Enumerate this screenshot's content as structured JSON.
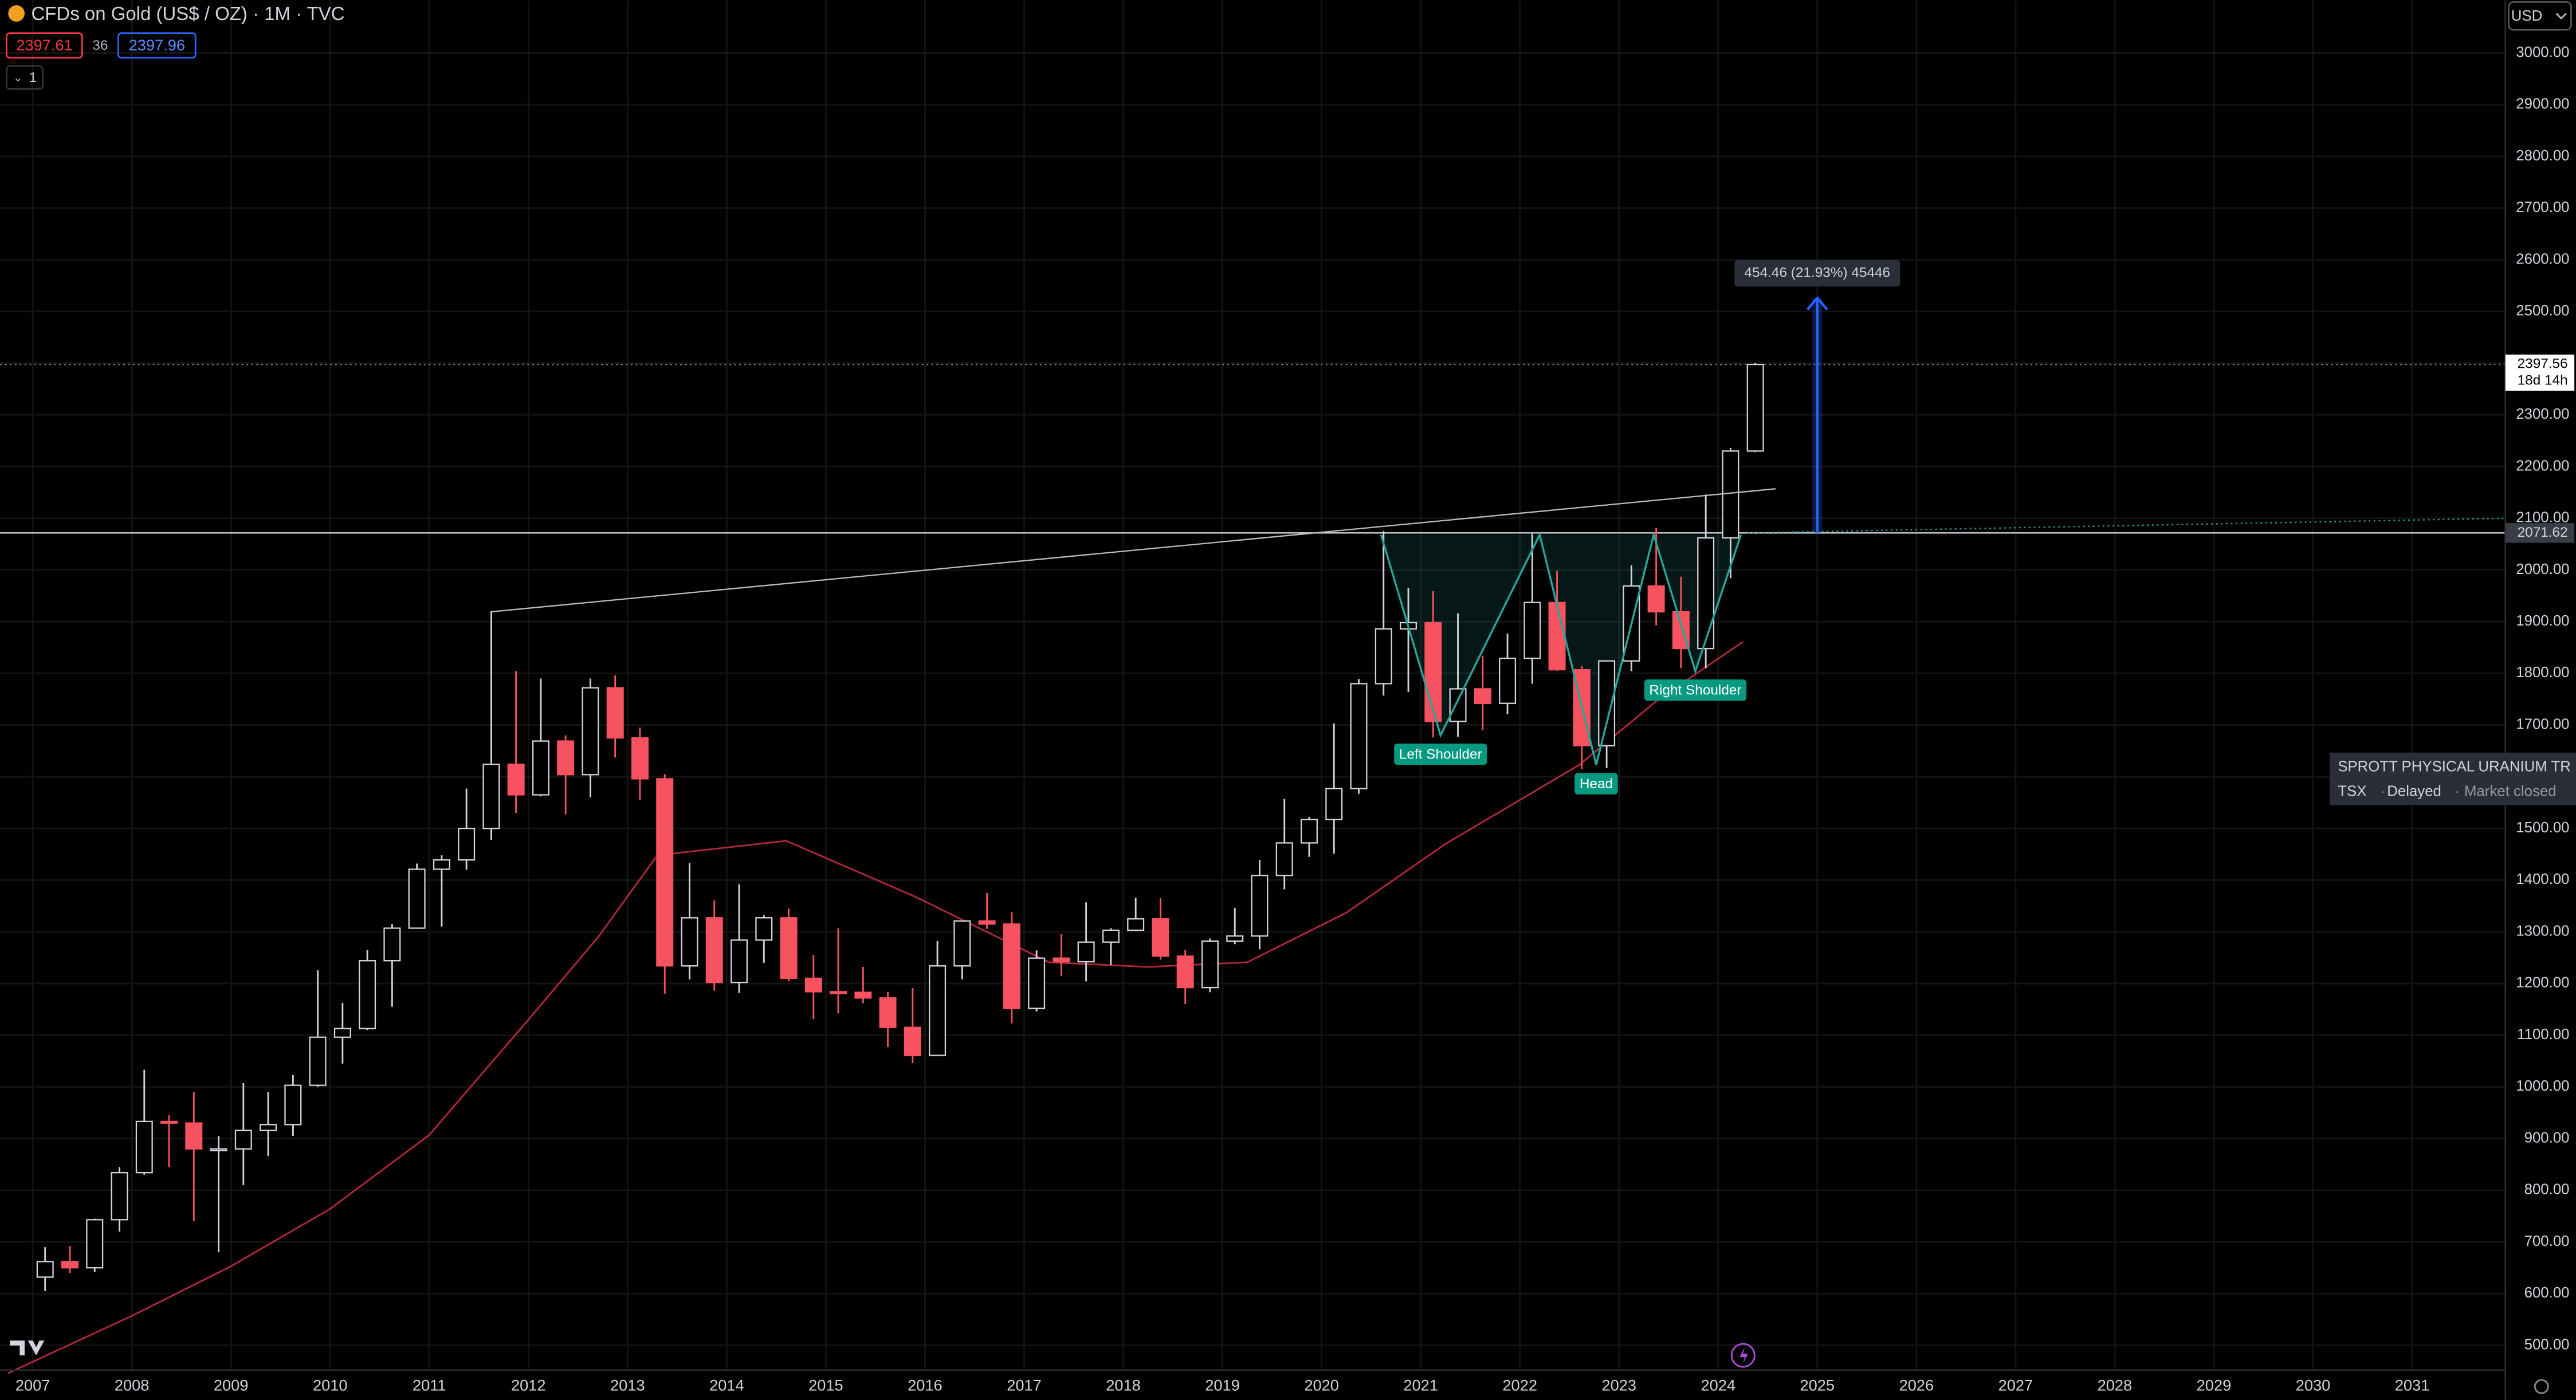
{
  "header": {
    "title": "CFDs on Gold (US$ / OZ) · 1M · TVC",
    "bid": 2397.61,
    "spread": 36,
    "ask": 2397.96,
    "interval": 1,
    "currency": "USD"
  },
  "popup": {
    "name": "SPROTT PHYSICAL URANIUM TR",
    "exchange": "TSX",
    "status": "Delayed",
    "market": "Market closed"
  },
  "chart_data": {
    "type": "candlestick",
    "up_color": "#d1d4dc",
    "down_color": "#f7525f",
    "grid": true,
    "xlim": [
      2006.67,
      2031.94
    ],
    "ylim": [
      452,
      3102
    ],
    "xticks": [
      2007,
      2008,
      2009,
      2010,
      2011,
      2012,
      2013,
      2014,
      2015,
      2016,
      2017,
      2018,
      2019,
      2020,
      2021,
      2022,
      2023,
      2024,
      2025,
      2026,
      2027,
      2028,
      2029,
      2030,
      2031
    ],
    "yticks": [
      {
        "value": 500,
        "label": "500.00"
      },
      {
        "value": 600,
        "label": "600.00"
      },
      {
        "value": 700,
        "label": "700.00"
      },
      {
        "value": 800,
        "label": "800.00"
      },
      {
        "value": 900,
        "label": "900.00"
      },
      {
        "value": 1000,
        "label": "1000.00"
      },
      {
        "value": 1100,
        "label": "1100.00"
      },
      {
        "value": 1200,
        "label": "1200.00"
      },
      {
        "value": 1300,
        "label": "1300.00"
      },
      {
        "value": 1400,
        "label": "1400.00"
      },
      {
        "value": 1500,
        "label": "1500.00"
      },
      {
        "value": 1600,
        "label": "1600.00"
      },
      {
        "value": 1700,
        "label": "1700.00"
      },
      {
        "value": 1800,
        "label": "1800.00"
      },
      {
        "value": 1900,
        "label": "1900.00"
      },
      {
        "value": 2000,
        "label": "2000.00"
      },
      {
        "value": 2100,
        "label": "2100.00"
      },
      {
        "value": 2200,
        "label": "2200.00"
      },
      {
        "value": 2300,
        "label": "2300.00"
      },
      {
        "value": 2400,
        "label": "2400.00"
      },
      {
        "value": 2500,
        "label": "2500.00"
      },
      {
        "value": 2600,
        "label": "2600.00"
      },
      {
        "value": 2700,
        "label": "2700.00"
      },
      {
        "value": 2800,
        "label": "2800.00"
      },
      {
        "value": 2900,
        "label": "2900.00"
      },
      {
        "value": 3000,
        "label": "3000.00"
      }
    ],
    "x": [
      2007.125,
      2007.375,
      2007.625,
      2007.875,
      2008.125,
      2008.375,
      2008.625,
      2008.875,
      2009.125,
      2009.375,
      2009.625,
      2009.875,
      2010.125,
      2010.375,
      2010.625,
      2010.875,
      2011.125,
      2011.375,
      2011.625,
      2011.875,
      2012.125,
      2012.375,
      2012.625,
      2012.875,
      2013.125,
      2013.375,
      2013.625,
      2013.875,
      2014.125,
      2014.375,
      2014.625,
      2014.875,
      2015.125,
      2015.375,
      2015.625,
      2015.875,
      2016.125,
      2016.375,
      2016.625,
      2016.875,
      2017.125,
      2017.375,
      2017.625,
      2017.875,
      2018.125,
      2018.375,
      2018.625,
      2018.875,
      2019.125,
      2019.375,
      2019.625,
      2019.875,
      2020.125,
      2020.375,
      2020.625,
      2020.875,
      2021.125,
      2021.375,
      2021.625,
      2021.875,
      2022.125,
      2022.375,
      2022.625,
      2022.875,
      2023.125,
      2023.375,
      2023.625,
      2023.875,
      2024.125,
      2024.375
    ],
    "open": [
      632,
      662,
      650,
      743,
      834,
      933,
      930,
      880,
      880,
      916,
      927,
      1003,
      1096,
      1113,
      1244,
      1307,
      1421,
      1439,
      1500,
      1624,
      1565,
      1669,
      1604,
      1772,
      1675,
      1596,
      1234,
      1327,
      1202,
      1284,
      1327,
      1210,
      1184,
      1183,
      1172,
      1115,
      1061,
      1234,
      1321,
      1315,
      1152,
      1249,
      1242,
      1280,
      1303,
      1325,
      1253,
      1192,
      1282,
      1292,
      1409,
      1472,
      1517,
      1577,
      1780,
      1886,
      1898,
      1707,
      1770,
      1742,
      1829,
      1937,
      1807,
      1660,
      1824,
      1969,
      1919,
      1848,
      2062,
      2230
    ],
    "high": [
      690,
      692,
      745,
      845,
      1033,
      946,
      990,
      905,
      1007,
      990,
      1023,
      1226,
      1162,
      1265,
      1315,
      1432,
      1448,
      1577,
      1920,
      1804,
      1790,
      1680,
      1790,
      1796,
      1695,
      1605,
      1433,
      1361,
      1392,
      1332,
      1345,
      1255,
      1307,
      1232,
      1184,
      1191,
      1282,
      1322,
      1375,
      1338,
      1264,
      1296,
      1357,
      1307,
      1366,
      1365,
      1265,
      1287,
      1346,
      1439,
      1557,
      1522,
      1703,
      1789,
      2075,
      1965,
      1959,
      1916,
      1834,
      1877,
      2070,
      1998,
      1814,
      1824,
      2009,
      2081,
      1987,
      2146,
      2236,
      2400
    ],
    "low": [
      605,
      640,
      642,
      720,
      830,
      845,
      740,
      680,
      810,
      866,
      905,
      1000,
      1045,
      1110,
      1155,
      1308,
      1310,
      1420,
      1478,
      1530,
      1562,
      1527,
      1560,
      1637,
      1555,
      1180,
      1208,
      1186,
      1182,
      1240,
      1204,
      1131,
      1142,
      1162,
      1077,
      1046,
      1062,
      1208,
      1306,
      1123,
      1146,
      1214,
      1204,
      1236,
      1303,
      1246,
      1160,
      1183,
      1276,
      1266,
      1382,
      1445,
      1451,
      1567,
      1757,
      1764,
      1676,
      1677,
      1690,
      1721,
      1780,
      1805,
      1615,
      1617,
      1804,
      1893,
      1810,
      1810,
      1984,
      2228
    ],
    "close": [
      662,
      650,
      743,
      834,
      933,
      930,
      880,
      880,
      916,
      927,
      1003,
      1096,
      1113,
      1244,
      1307,
      1421,
      1439,
      1500,
      1624,
      1565,
      1669,
      1604,
      1772,
      1675,
      1596,
      1234,
      1327,
      1202,
      1284,
      1327,
      1210,
      1184,
      1183,
      1172,
      1115,
      1061,
      1234,
      1321,
      1315,
      1152,
      1249,
      1242,
      1280,
      1303,
      1325,
      1253,
      1192,
      1282,
      1292,
      1409,
      1472,
      1517,
      1577,
      1780,
      1886,
      1898,
      1707,
      1770,
      1742,
      1829,
      1937,
      1807,
      1660,
      1824,
      1969,
      1919,
      1848,
      2062,
      2230,
      2397.61
    ],
    "ma": {
      "color": "#b2283a",
      "x": [
        2006.75,
        2008,
        2009,
        2010,
        2011,
        2012,
        2012.7,
        2013.3,
        2014.6,
        2015.9,
        2017.25,
        2018.25,
        2019.25,
        2020.25,
        2021.25,
        2022.6,
        2023.4,
        2024.25
      ],
      "values": [
        446,
        557,
        653,
        764,
        907,
        1130,
        1289,
        1448,
        1476,
        1368,
        1241,
        1232,
        1241,
        1337,
        1470,
        1623,
        1750,
        1861
      ]
    },
    "trendline": {
      "x": [
        2011.62,
        2024.58
      ],
      "y": [
        1919,
        2157
      ]
    },
    "pattern": {
      "color": "#26a69a",
      "x": [
        2020.6,
        2021.2,
        2022.2,
        2022.77,
        2023.35,
        2023.77,
        2024.23
      ],
      "y": [
        2068,
        1680,
        2068,
        1623,
        2068,
        1804,
        2068
      ]
    },
    "pattern_labels": [
      "Left Shoulder",
      "Head",
      "Right Shoulder"
    ],
    "projection": {
      "x": [
        2024.3,
        2031.94
      ],
      "y": [
        2071.62,
        2100
      ]
    },
    "measure": {
      "x": 2025,
      "from": 2071.62,
      "to": 2526.08,
      "label": "454.46 (21.93%) 45446"
    },
    "last_price": 2397.56,
    "countdown": "18d 14h",
    "level": 2071.62
  }
}
